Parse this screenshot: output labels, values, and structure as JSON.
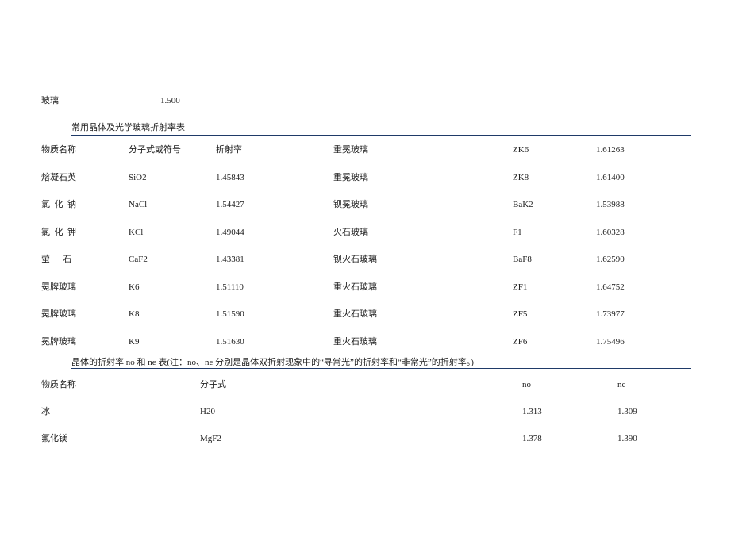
{
  "top_line": {
    "name": "玻璃",
    "value": "1.500"
  },
  "table1": {
    "title": "常用晶体及光学玻璃折射率表",
    "rows": [
      [
        "物质名称",
        "分子式或符号",
        "折射率",
        "重冕玻璃",
        "ZK6",
        "1.61263"
      ],
      [
        "熔凝石英",
        "SiO2",
        "1.45843",
        "重冕玻璃",
        "ZK8",
        "1.61400"
      ],
      [
        "氯  化  钠",
        "NaCl",
        "1.54427",
        "钡冕玻璃",
        "BaK2",
        "1.53988"
      ],
      [
        "氯  化  钾",
        "KCl",
        "1.49044",
        "火石玻璃",
        "F1",
        "1.60328"
      ],
      [
        "萤      石",
        "CaF2",
        "1.43381",
        "钡火石玻璃",
        "BaF8",
        "1.62590"
      ],
      [
        "冕牌玻璃",
        "K6",
        "1.51110",
        "重火石玻璃",
        "ZF1",
        "1.64752"
      ],
      [
        "冕牌玻璃",
        "K8",
        "1.51590",
        "重火石玻璃",
        "ZF5",
        "1.73977"
      ],
      [
        "冕牌玻璃",
        "K9",
        "1.51630",
        "重火石玻璃",
        "ZF6",
        "1.75496"
      ]
    ]
  },
  "table2": {
    "title": "晶体的折射率 no 和 ne 表(注：no、ne 分别是晶体双折射现象中的“寻常光”的折射率和“非常光”的折射率。)",
    "rows": [
      [
        "物质名称",
        "分子式",
        "no",
        "ne"
      ],
      [
        "冰",
        "H20",
        "1.313",
        "1.309"
      ],
      [
        "氟化镁",
        "MgF2",
        "1.378",
        "1.390"
      ]
    ]
  },
  "colors": {
    "rule": "#1f3a68"
  }
}
